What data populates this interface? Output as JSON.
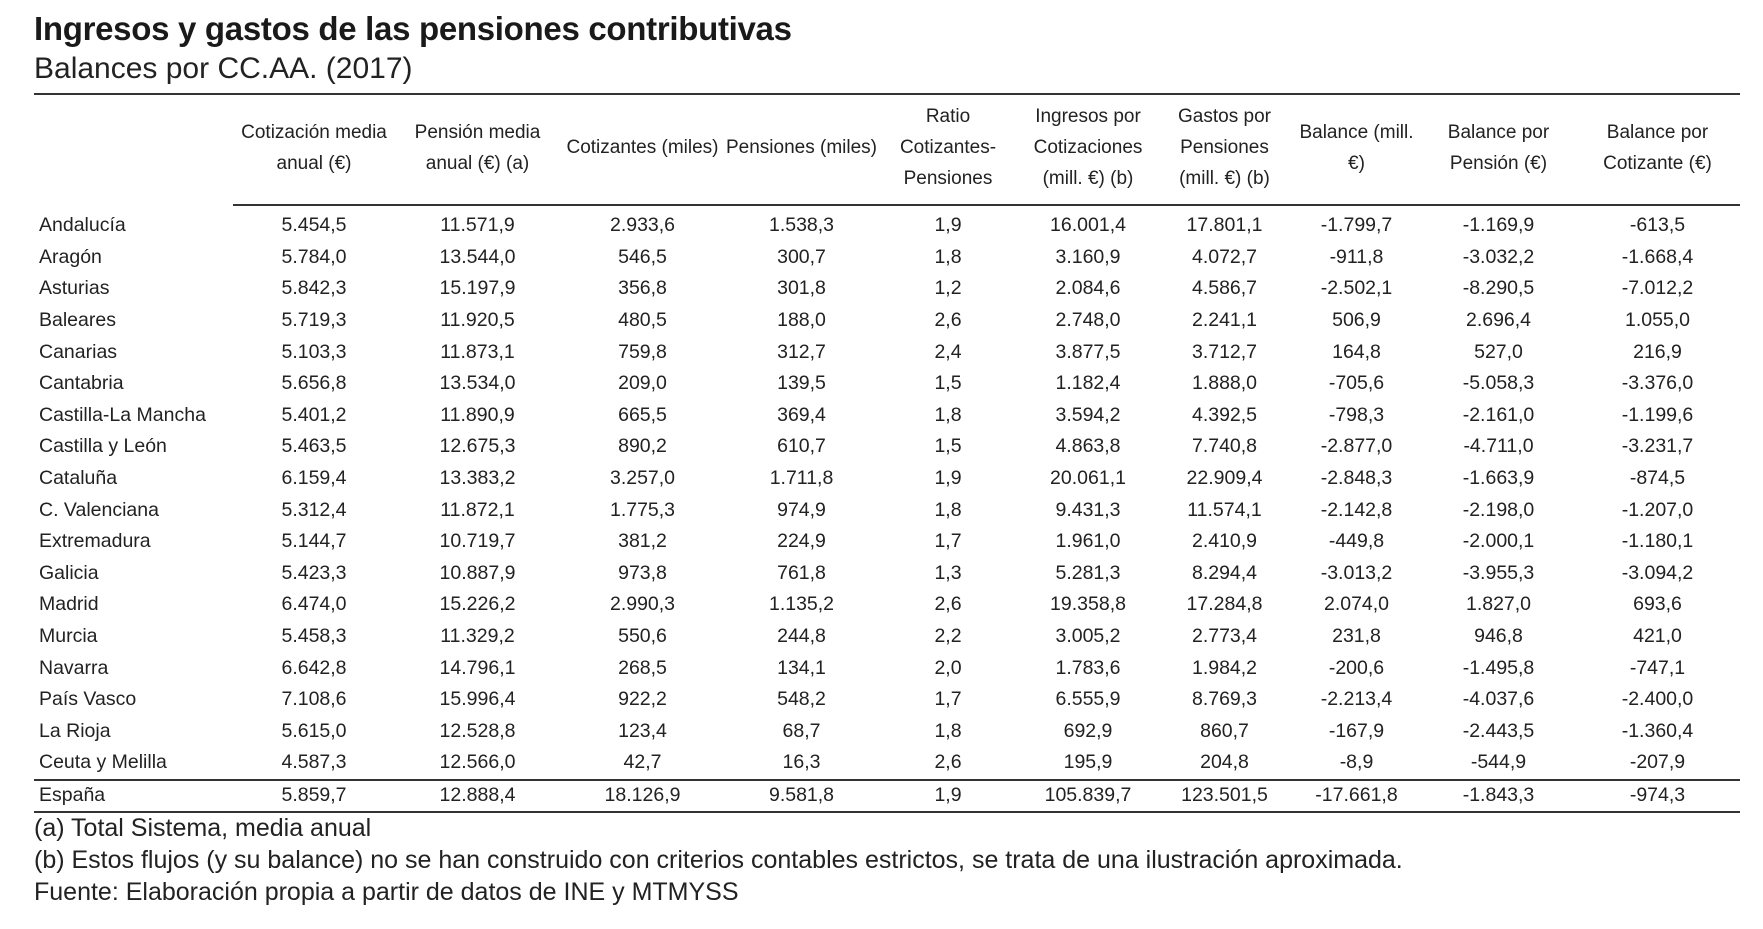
{
  "title": "Ingresos y gastos de las pensiones contributivas",
  "subtitle": "Balances por CC.AA. (2017)",
  "table": {
    "headers": [
      "",
      "Cotización media anual (€)",
      "Pensión media anual (€) (a)",
      "Cotizantes (miles)",
      "Pensiones (miles)",
      "Ratio Cotizantes-Pensiones",
      "Ingresos por Cotizaciones (mill. €) (b)",
      "Gastos por Pensiones (mill. €) (b)",
      "Balance (mill. €)",
      "Balance por Pensión (€)",
      "Balance por Cotizante (€)"
    ],
    "rows": [
      [
        "Andalucía",
        "5.454,5",
        "11.571,9",
        "2.933,6",
        "1.538,3",
        "1,9",
        "16.001,4",
        "17.801,1",
        "-1.799,7",
        "-1.169,9",
        "-613,5"
      ],
      [
        "Aragón",
        "5.784,0",
        "13.544,0",
        "546,5",
        "300,7",
        "1,8",
        "3.160,9",
        "4.072,7",
        "-911,8",
        "-3.032,2",
        "-1.668,4"
      ],
      [
        "Asturias",
        "5.842,3",
        "15.197,9",
        "356,8",
        "301,8",
        "1,2",
        "2.084,6",
        "4.586,7",
        "-2.502,1",
        "-8.290,5",
        "-7.012,2"
      ],
      [
        "Baleares",
        "5.719,3",
        "11.920,5",
        "480,5",
        "188,0",
        "2,6",
        "2.748,0",
        "2.241,1",
        "506,9",
        "2.696,4",
        "1.055,0"
      ],
      [
        "Canarias",
        "5.103,3",
        "11.873,1",
        "759,8",
        "312,7",
        "2,4",
        "3.877,5",
        "3.712,7",
        "164,8",
        "527,0",
        "216,9"
      ],
      [
        "Cantabria",
        "5.656,8",
        "13.534,0",
        "209,0",
        "139,5",
        "1,5",
        "1.182,4",
        "1.888,0",
        "-705,6",
        "-5.058,3",
        "-3.376,0"
      ],
      [
        "Castilla-La Mancha",
        "5.401,2",
        "11.890,9",
        "665,5",
        "369,4",
        "1,8",
        "3.594,2",
        "4.392,5",
        "-798,3",
        "-2.161,0",
        "-1.199,6"
      ],
      [
        "Castilla y León",
        "5.463,5",
        "12.675,3",
        "890,2",
        "610,7",
        "1,5",
        "4.863,8",
        "7.740,8",
        "-2.877,0",
        "-4.711,0",
        "-3.231,7"
      ],
      [
        "Cataluña",
        "6.159,4",
        "13.383,2",
        "3.257,0",
        "1.711,8",
        "1,9",
        "20.061,1",
        "22.909,4",
        "-2.848,3",
        "-1.663,9",
        "-874,5"
      ],
      [
        "C. Valenciana",
        "5.312,4",
        "11.872,1",
        "1.775,3",
        "974,9",
        "1,8",
        "9.431,3",
        "11.574,1",
        "-2.142,8",
        "-2.198,0",
        "-1.207,0"
      ],
      [
        "Extremadura",
        "5.144,7",
        "10.719,7",
        "381,2",
        "224,9",
        "1,7",
        "1.961,0",
        "2.410,9",
        "-449,8",
        "-2.000,1",
        "-1.180,1"
      ],
      [
        "Galicia",
        "5.423,3",
        "10.887,9",
        "973,8",
        "761,8",
        "1,3",
        "5.281,3",
        "8.294,4",
        "-3.013,2",
        "-3.955,3",
        "-3.094,2"
      ],
      [
        "Madrid",
        "6.474,0",
        "15.226,2",
        "2.990,3",
        "1.135,2",
        "2,6",
        "19.358,8",
        "17.284,8",
        "2.074,0",
        "1.827,0",
        "693,6"
      ],
      [
        "Murcia",
        "5.458,3",
        "11.329,2",
        "550,6",
        "244,8",
        "2,2",
        "3.005,2",
        "2.773,4",
        "231,8",
        "946,8",
        "421,0"
      ],
      [
        "Navarra",
        "6.642,8",
        "14.796,1",
        "268,5",
        "134,1",
        "2,0",
        "1.783,6",
        "1.984,2",
        "-200,6",
        "-1.495,8",
        "-747,1"
      ],
      [
        "País Vasco",
        "7.108,6",
        "15.996,4",
        "922,2",
        "548,2",
        "1,7",
        "6.555,9",
        "8.769,3",
        "-2.213,4",
        "-4.037,6",
        "-2.400,0"
      ],
      [
        "La Rioja",
        "5.615,0",
        "12.528,8",
        "123,4",
        "68,7",
        "1,8",
        "692,9",
        "860,7",
        "-167,9",
        "-2.443,5",
        "-1.360,4"
      ],
      [
        "Ceuta y Melilla",
        "4.587,3",
        "12.566,0",
        "42,7",
        "16,3",
        "2,6",
        "195,9",
        "204,8",
        "-8,9",
        "-544,9",
        "-207,9"
      ]
    ],
    "total": [
      "España",
      "5.859,7",
      "12.888,4",
      "18.126,9",
      "9.581,8",
      "1,9",
      "105.839,7",
      "123.501,5",
      "-17.661,8",
      "-1.843,3",
      "-974,3"
    ]
  },
  "notes": {
    "a": "(a)  Total Sistema, media anual",
    "b": "(b)  Estos flujos (y su balance) no se han construido con criterios contables estrictos, se trata de una ilustración aproximada.",
    "source": "Fuente: Elaboración propia a partir de datos de INE y MTMYSS"
  }
}
